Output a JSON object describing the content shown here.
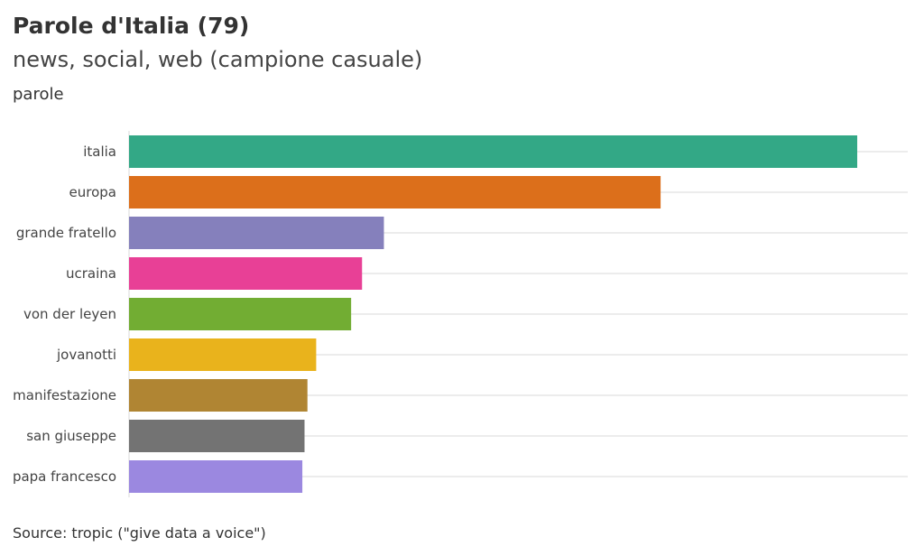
{
  "header": {
    "title": "Parole d'Italia (79)",
    "subtitle": "news, social, web (campione casuale)",
    "axis_caption": "parole"
  },
  "footer": {
    "source": "Source: tropic (\"give data a voice\")"
  },
  "chart_data": {
    "type": "bar",
    "orientation": "horizontal",
    "title": "Parole d'Italia (79)",
    "subtitle": "news, social, web (campione casuale)",
    "ylabel": "parole",
    "xlabel": "",
    "grid": true,
    "legend": "none",
    "categories": [
      "italia",
      "europa",
      "grande fratello",
      "ucraina",
      "von der leyen",
      "jovanotti",
      "manifestazione",
      "san giuseppe",
      "papa francesco"
    ],
    "values": [
      100,
      73,
      35,
      32,
      30.5,
      25.7,
      24.5,
      24.1,
      23.8
    ],
    "xlim": [
      0,
      100
    ],
    "colors": [
      "#33a886",
      "#dc6f1b",
      "#8580bc",
      "#e84096",
      "#72ad33",
      "#e9b31c",
      "#b08533",
      "#737373",
      "#9b88e0"
    ]
  }
}
